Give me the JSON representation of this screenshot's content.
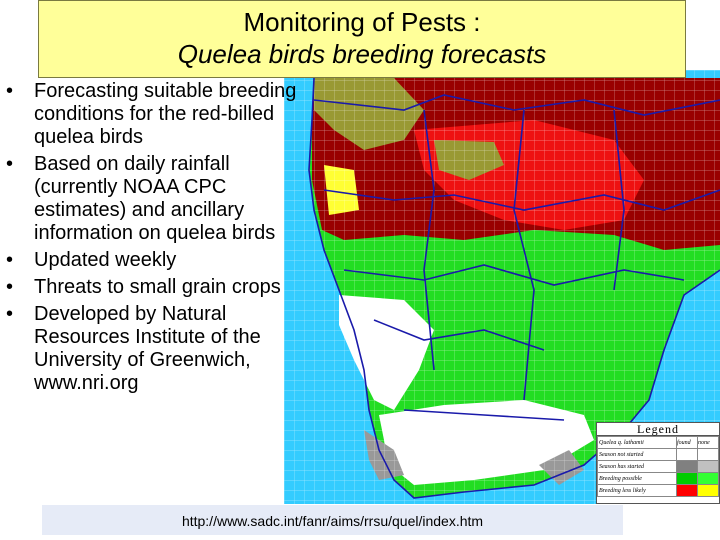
{
  "title": {
    "line1": "Monitoring of Pests :",
    "line2": "Quelea birds breeding forecasts"
  },
  "bullets": [
    "Forecasting suitable breeding conditions for the red-billed quelea birds",
    "Based on daily rainfall (currently NOAA CPC estimates) and ancillary information on quelea birds",
    "Updated weekly",
    "Threats to small grain crops",
    "Developed by Natural Resources Institute of the University of Greenwich, www.nri.org"
  ],
  "bullet_symbol": "•",
  "legend": {
    "title": "Legend",
    "header": [
      "Quelea q. lathamii",
      "found",
      "none"
    ],
    "rows": [
      {
        "label": "Season not started",
        "colors": [
          "#ffffff",
          "#ffffff"
        ]
      },
      {
        "label": "Season has started",
        "colors": [
          "#808080",
          "#c0c0c0"
        ]
      },
      {
        "label": "Breeding possible",
        "colors": [
          "#00cc00",
          "#33ff33"
        ]
      },
      {
        "label": "Breeding less likely",
        "colors": [
          "#ff0000",
          "#ffff00"
        ]
      }
    ]
  },
  "colors": {
    "title_bg": "#ffff99",
    "ocean": "#33ccff",
    "breeding_possible": "#22dd22",
    "breeding_less_likely_red": "#ee1111",
    "dark_red": "#990000",
    "olive": "#999933",
    "season_not_started": "#ffffff",
    "season_started_grey": "#999999",
    "url_bar_bg": "#e6ebf7"
  },
  "url": "http://www.sadc.int/fanr/aims/rrsu/quel/index.htm"
}
